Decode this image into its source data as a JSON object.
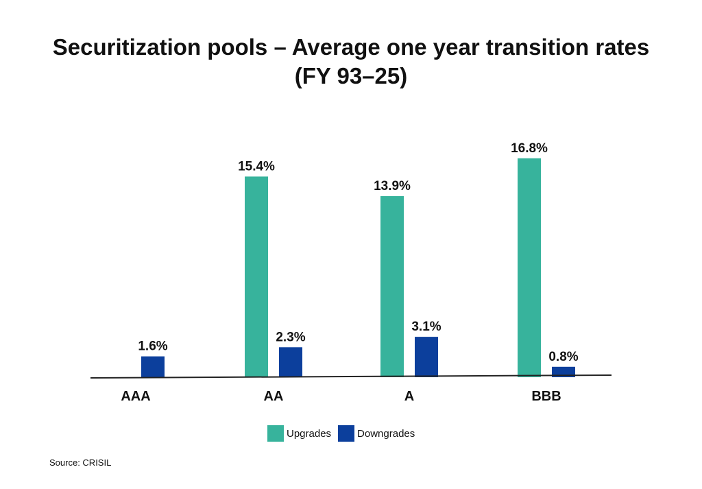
{
  "title_line1": "Securitization pools – Average one year transition rates",
  "title_line2": "(FY 93–25)",
  "source": "Source: CRISIL",
  "colors": {
    "upgrades": "#37b39c",
    "downgrades": "#0c3f9c",
    "axis": "#222222"
  },
  "chart_data": {
    "type": "bar",
    "title": "Securitization pools – Average one year transition rates (FY 93–25)",
    "categories": [
      "AAA",
      "AA",
      "A",
      "BBB"
    ],
    "series": [
      {
        "name": "Upgrades",
        "values": [
          null,
          15.4,
          13.9,
          16.8
        ],
        "labels": [
          "",
          "15.4%",
          "13.9%",
          "16.8%"
        ]
      },
      {
        "name": "Downgrades",
        "values": [
          1.6,
          2.3,
          3.1,
          0.8
        ],
        "labels": [
          "1.6%",
          "2.3%",
          "3.1%",
          "0.8%"
        ]
      }
    ],
    "ylim": [
      0,
      20
    ],
    "grid": false,
    "legend_position": "bottom"
  }
}
